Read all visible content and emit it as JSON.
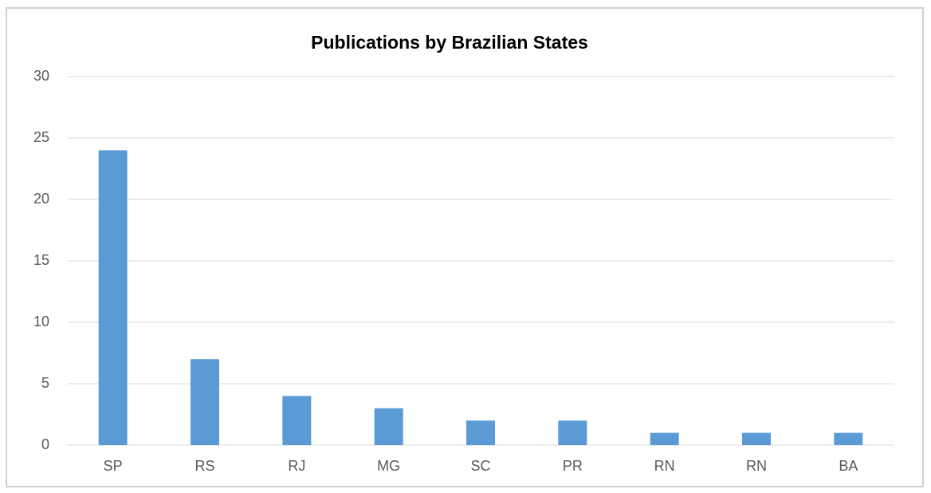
{
  "chart_data": {
    "type": "bar",
    "title": "Publications by Brazilian States",
    "categories": [
      "SP",
      "RS",
      "RJ",
      "MG",
      "SC",
      "PR",
      "RN",
      "RN",
      "BA"
    ],
    "values": [
      24,
      7,
      4,
      3,
      2,
      2,
      1,
      1,
      1
    ],
    "color": "#5b9bd5",
    "ylim": [
      0,
      30
    ],
    "yticks": [
      0,
      5,
      10,
      15,
      20,
      25,
      30
    ],
    "grid": true
  }
}
